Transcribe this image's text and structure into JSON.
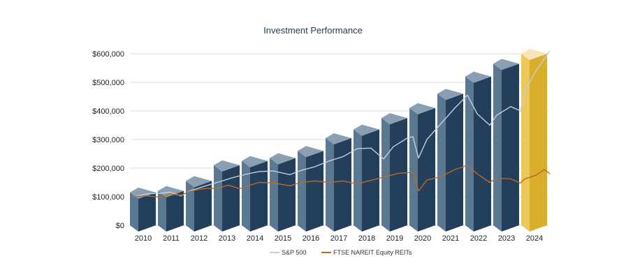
{
  "colors": {
    "bar_front": "#243f5c",
    "bar_side": "#5c7891",
    "bar_top": "#8aa0b2",
    "highlight_front": "#d9ae2a",
    "highlight_side": "#ecc75a",
    "highlight_top": "#f5e6b8",
    "sp500_line": "#c3cfdb",
    "reit_line": "#b86b24",
    "grid": "#dddddd"
  },
  "chart_data": {
    "type": "bar",
    "title": "Investment Performance",
    "xlabel": "",
    "ylabel": "",
    "ylim": [
      0,
      600000
    ],
    "yticks": [
      0,
      100000,
      200000,
      300000,
      400000,
      500000,
      600000
    ],
    "ytick_labels": [
      "$0",
      "$100,000",
      "$200,000",
      "$300,000",
      "$400,000",
      "$500,000",
      "$600,000"
    ],
    "categories": [
      "2010",
      "2011",
      "2012",
      "2013",
      "2014",
      "2015",
      "2016",
      "2017",
      "2018",
      "2019",
      "2020",
      "2021",
      "2022",
      "2023",
      "2024"
    ],
    "values": [
      115000,
      120000,
      155000,
      210000,
      225000,
      235000,
      260000,
      305000,
      335000,
      375000,
      410000,
      460000,
      520000,
      565000,
      600000
    ],
    "highlight_category": "2024",
    "grid": true,
    "legend_position": "bottom",
    "series": [
      {
        "name": "S&P 500",
        "type": "line",
        "x": [
          2010.0,
          2010.5,
          2011.0,
          2011.3,
          2011.7,
          2012.0,
          2012.5,
          2013.0,
          2013.5,
          2014.0,
          2014.5,
          2015.0,
          2015.6,
          2016.0,
          2016.5,
          2017.0,
          2017.5,
          2018.0,
          2018.5,
          2018.95,
          2019.3,
          2019.8,
          2020.0,
          2020.2,
          2020.5,
          2021.0,
          2021.5,
          2021.95,
          2022.3,
          2022.75,
          2023.0,
          2023.5,
          2023.85,
          2024.0,
          2024.4,
          2024.9
        ],
        "values": [
          100000,
          110000,
          112000,
          116000,
          103000,
          120000,
          135000,
          150000,
          165000,
          178000,
          188000,
          190000,
          177000,
          192000,
          205000,
          225000,
          240000,
          268000,
          270000,
          232000,
          275000,
          305000,
          310000,
          235000,
          300000,
          355000,
          410000,
          455000,
          390000,
          350000,
          385000,
          415000,
          400000,
          465000,
          540000,
          610000
        ]
      },
      {
        "name": "FTSE NAREIT Equity REITs",
        "type": "line",
        "x": [
          2010.0,
          2010.5,
          2011.0,
          2011.3,
          2011.7,
          2012.0,
          2012.5,
          2013.0,
          2013.4,
          2013.8,
          2014.0,
          2014.5,
          2015.0,
          2015.6,
          2016.0,
          2016.5,
          2017.0,
          2017.5,
          2018.0,
          2018.5,
          2019.0,
          2019.5,
          2020.0,
          2020.2,
          2020.5,
          2021.0,
          2021.5,
          2021.95,
          2022.3,
          2022.75,
          2023.0,
          2023.5,
          2023.85,
          2024.0,
          2024.4,
          2024.7,
          2024.9
        ],
        "values": [
          100000,
          103000,
          98000,
          110000,
          105000,
          118000,
          128000,
          130000,
          140000,
          128000,
          135000,
          150000,
          148000,
          138000,
          150000,
          155000,
          150000,
          155000,
          145000,
          157000,
          170000,
          182000,
          185000,
          120000,
          158000,
          170000,
          195000,
          210000,
          180000,
          150000,
          165000,
          162000,
          148000,
          162000,
          175000,
          195000,
          180000
        ]
      }
    ]
  }
}
